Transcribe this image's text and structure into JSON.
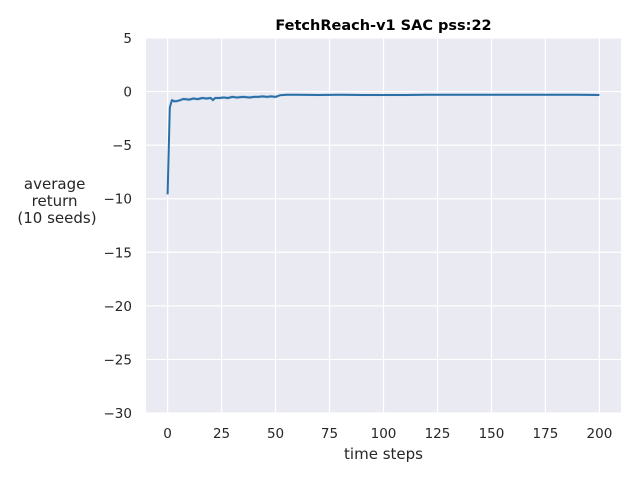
{
  "chart_data": {
    "type": "line",
    "title": "FetchReach-v1 SAC pss:22",
    "xlabel": "time steps",
    "ylabel_lines": [
      "average",
      "return",
      "(10 seeds)"
    ],
    "xlim": [
      -10,
      210
    ],
    "ylim": [
      -30,
      5
    ],
    "xticks": [
      0,
      25,
      50,
      75,
      100,
      125,
      150,
      175,
      200
    ],
    "yticks": [
      5,
      0,
      -5,
      -10,
      -15,
      -20,
      -25,
      -30
    ],
    "xtick_labels": [
      "0",
      "25",
      "50",
      "75",
      "100",
      "125",
      "150",
      "175",
      "200"
    ],
    "ytick_labels": [
      "5",
      "0",
      "−5",
      "−10",
      "−15",
      "−20",
      "−25",
      "−30"
    ],
    "grid": true,
    "colors": {
      "line": "#2a6fa8",
      "band": "#a9c6e2",
      "background": "#eaeaf2",
      "grid": "#ffffff"
    },
    "series": [
      {
        "x": [
          0,
          1,
          2,
          3,
          4,
          5,
          6,
          7,
          8,
          10,
          12,
          14,
          16,
          18,
          20,
          21,
          22,
          24,
          26,
          28,
          30,
          32,
          35,
          38,
          40,
          42,
          44,
          46,
          48,
          50,
          52,
          55,
          60,
          70,
          80,
          90,
          100,
          110,
          120,
          130,
          140,
          150,
          160,
          170,
          180,
          190,
          200
        ],
        "y": [
          -9.6,
          -1.5,
          -0.8,
          -0.9,
          -0.9,
          -0.85,
          -0.8,
          -0.7,
          -0.7,
          -0.75,
          -0.65,
          -0.7,
          -0.6,
          -0.65,
          -0.6,
          -0.8,
          -0.6,
          -0.6,
          -0.55,
          -0.6,
          -0.5,
          -0.55,
          -0.5,
          -0.55,
          -0.5,
          -0.5,
          -0.45,
          -0.5,
          -0.45,
          -0.5,
          -0.35,
          -0.3,
          -0.3,
          -0.32,
          -0.3,
          -0.32,
          -0.32,
          -0.32,
          -0.3,
          -0.3,
          -0.3,
          -0.3,
          -0.3,
          -0.3,
          -0.3,
          -0.3,
          -0.32
        ],
        "band_low": [
          -10.3,
          -2.0,
          -1.0,
          -1.05,
          -1.05,
          -1.0,
          -0.95,
          -0.85,
          -0.85,
          -0.9,
          -0.8,
          -0.85,
          -0.75,
          -0.8,
          -0.75,
          -0.95,
          -0.75,
          -0.75,
          -0.7,
          -0.75,
          -0.65,
          -0.7,
          -0.65,
          -0.7,
          -0.65,
          -0.65,
          -0.6,
          -0.65,
          -0.6,
          -0.65,
          -0.45,
          -0.4,
          -0.4,
          -0.42,
          -0.4,
          -0.42,
          -0.42,
          -0.42,
          -0.4,
          -0.4,
          -0.4,
          -0.4,
          -0.4,
          -0.4,
          -0.4,
          -0.4,
          -0.42
        ],
        "band_high": [
          -9.0,
          -1.1,
          -0.65,
          -0.75,
          -0.75,
          -0.7,
          -0.65,
          -0.55,
          -0.55,
          -0.6,
          -0.5,
          -0.55,
          -0.45,
          -0.5,
          -0.45,
          -0.65,
          -0.45,
          -0.45,
          -0.4,
          -0.45,
          -0.35,
          -0.4,
          -0.35,
          -0.4,
          -0.35,
          -0.35,
          -0.3,
          -0.35,
          -0.3,
          -0.35,
          -0.25,
          -0.2,
          -0.2,
          -0.22,
          -0.2,
          -0.22,
          -0.22,
          -0.22,
          -0.2,
          -0.2,
          -0.2,
          -0.2,
          -0.2,
          -0.2,
          -0.2,
          -0.2,
          -0.22
        ]
      }
    ]
  }
}
